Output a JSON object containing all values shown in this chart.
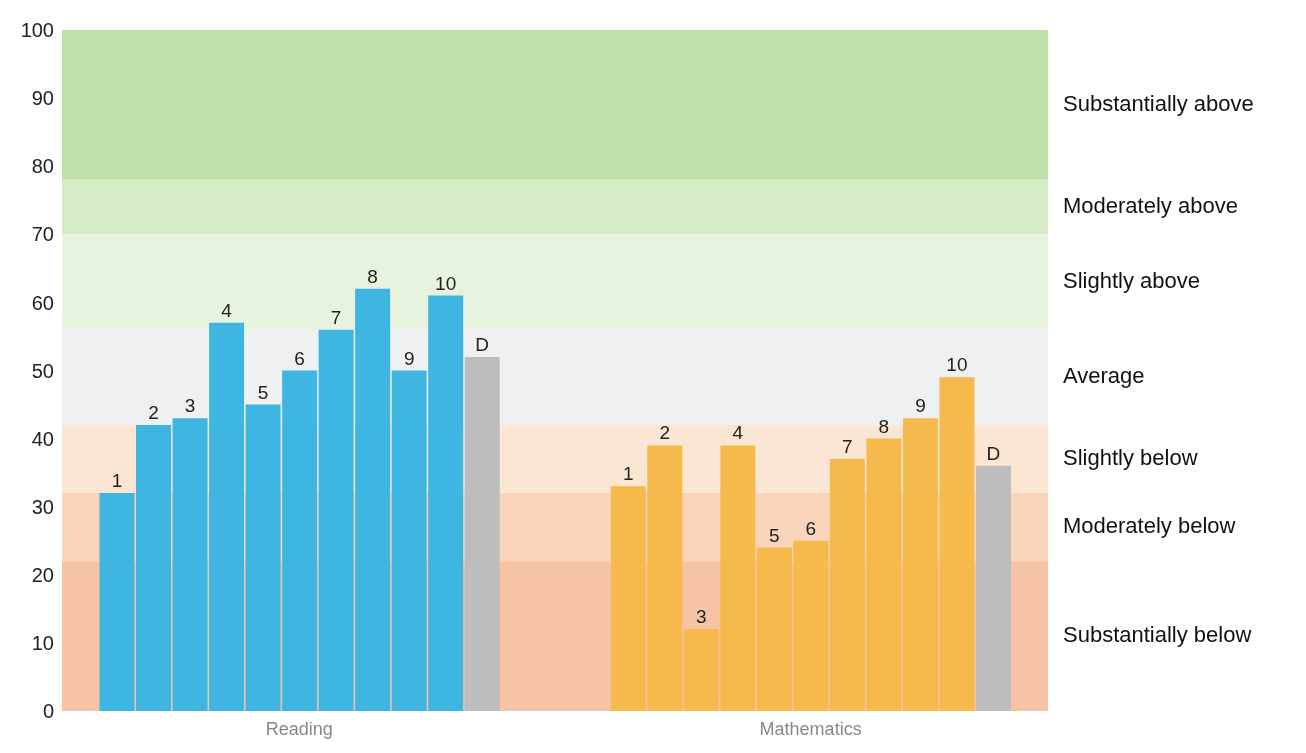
{
  "chart_data": {
    "type": "bar",
    "categories": [
      null,
      "1",
      "2",
      "3",
      "4",
      "5",
      "6",
      "7",
      "8",
      "9",
      "10",
      "D",
      null,
      null,
      null,
      "1",
      "2",
      "3",
      "4",
      "5",
      "6",
      "7",
      "8",
      "9",
      "10",
      "D",
      null
    ],
    "annotations": [
      "Reading",
      "Mathematics"
    ],
    "values": [
      null,
      32,
      42,
      43,
      57,
      45,
      50,
      56,
      62,
      50,
      61,
      52,
      null,
      null,
      null,
      33,
      39,
      12,
      39,
      24,
      25,
      37,
      40,
      43,
      49,
      36,
      null
    ],
    "colors": [
      null,
      "#3fb5e1",
      "#3fb5e1",
      "#3fb5e1",
      "#3fb5e1",
      "#3fb5e1",
      "#3fb5e1",
      "#3fb5e1",
      "#3fb5e1",
      "#3fb5e1",
      "#3fb5e1",
      "#bdbdbd",
      null,
      null,
      null,
      "#f6b94c",
      "#f6b94c",
      "#f6b94c",
      "#f6b94c",
      "#f6b94c",
      "#f6b94c",
      "#f6b94c",
      "#f6b94c",
      "#f6b94c",
      "#f6b94c",
      "#bdbdbd",
      null
    ],
    "ylim": [
      0,
      100
    ],
    "yticks": [
      0,
      10,
      20,
      30,
      40,
      50,
      60,
      70,
      80,
      90,
      100
    ],
    "grid": false,
    "legend": false,
    "bands": [
      {
        "axis": "y",
        "from": 78,
        "to": 100,
        "label": "Substantially above",
        "color": "#c0e0a9"
      },
      {
        "axis": "y",
        "from": 70,
        "to": 78,
        "label": "Moderately above",
        "color": "#d5ebc5"
      },
      {
        "axis": "y",
        "from": 56,
        "to": 70,
        "label": "Slightly above",
        "color": "#e7f2df"
      },
      {
        "axis": "y",
        "from": 42,
        "to": 56,
        "label": "Average",
        "color": "#eef0f2"
      },
      {
        "axis": "y",
        "from": 32,
        "to": 42,
        "label": "Slightly below",
        "color": "#fbe6d4"
      },
      {
        "axis": "y",
        "from": 22,
        "to": 32,
        "label": "Moderately below",
        "color": "#f9d4bb"
      },
      {
        "axis": "y",
        "from": 0,
        "to": 22,
        "label": "Substantially below",
        "color": "#f6c4a5"
      }
    ]
  }
}
